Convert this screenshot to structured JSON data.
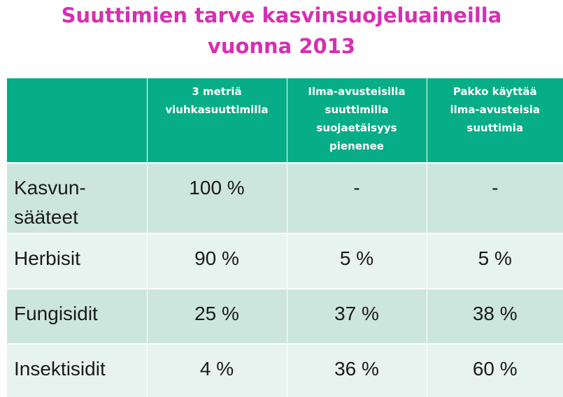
{
  "title": {
    "line1": "Suuttimien tarve kasvinsuojeluaineilla",
    "line2": "vuonna 2013"
  },
  "table": {
    "headers": [
      "",
      "3 metriä viuhkasuuttimilla",
      "Ilma-avusteisilla suuttimilla suojaetäisyys pienenee",
      "Pakko käyttää ilma-avusteisia suuttimia"
    ],
    "header_lines": [
      [],
      [
        "3 metriä",
        "viuhkasuuttimilla"
      ],
      [
        "Ilma-avusteisilla",
        "suuttimilla",
        "suojaetäisyys",
        "pienenee"
      ],
      [
        "Pakko käyttää",
        "ilma-avusteisia",
        "suuttimia"
      ]
    ],
    "rows": [
      {
        "label_lines": [
          "Kasvun-",
          "sääteet"
        ],
        "values": [
          "100 %",
          "-",
          "-"
        ]
      },
      {
        "label_lines": [
          "Herbisit"
        ],
        "values": [
          "90 %",
          "5 %",
          "5 %"
        ]
      },
      {
        "label_lines": [
          "Fungisidit"
        ],
        "values": [
          "25 %",
          "37 %",
          "38 %"
        ]
      },
      {
        "label_lines": [
          "Insektisidit"
        ],
        "values": [
          "4 %",
          "36 %",
          "60 %"
        ]
      }
    ]
  },
  "colors": {
    "title": "#d62fb2",
    "header_bg": "#06ad86",
    "row_dark": "#cde6dd",
    "row_light": "#e7f3ee"
  }
}
